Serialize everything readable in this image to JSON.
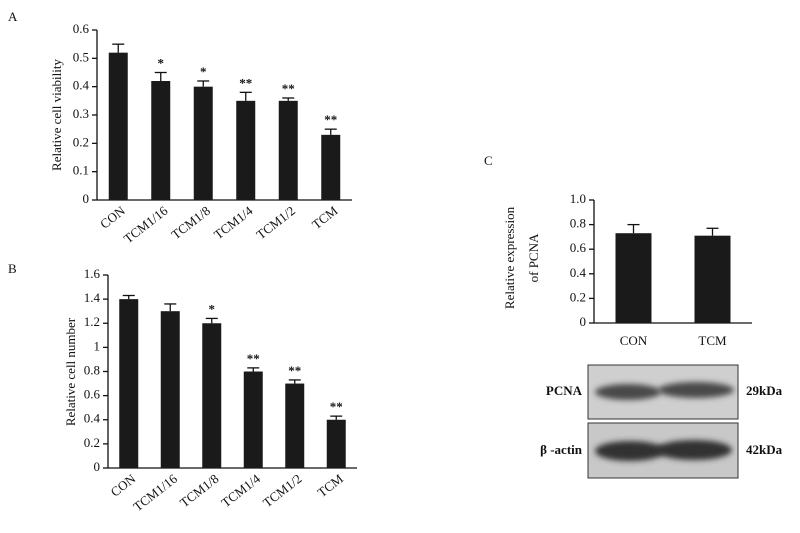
{
  "chart_data": [
    {
      "type": "bar",
      "panel": "A",
      "ylabel": [
        "Relative cell viability"
      ],
      "categories": [
        "CON",
        "TCM1/16",
        "TCM1/8",
        "TCM1/4",
        "TCM1/2",
        "TCM"
      ],
      "values": [
        0.52,
        0.42,
        0.4,
        0.35,
        0.35,
        0.23
      ],
      "errors": [
        0.03,
        0.03,
        0.02,
        0.03,
        0.01,
        0.02
      ],
      "annotations": [
        null,
        "*",
        "*",
        "**",
        "**",
        "**"
      ],
      "color": "#1a1a1a",
      "ylim": [
        0,
        0.6
      ],
      "yticks": [
        0,
        0.1,
        0.2,
        0.3,
        0.4,
        0.5,
        0.6
      ]
    },
    {
      "type": "bar",
      "panel": "B",
      "ylabel": [
        "Relative cell number"
      ],
      "categories": [
        "CON",
        "TCM1/16",
        "TCM1/8",
        "TCM1/4",
        "TCM1/2",
        "TCM"
      ],
      "values": [
        1.4,
        1.3,
        1.2,
        0.8,
        0.7,
        0.4
      ],
      "errors": [
        0.03,
        0.06,
        0.04,
        0.03,
        0.03,
        0.03
      ],
      "annotations": [
        null,
        null,
        "*",
        "**",
        "**",
        "**"
      ],
      "color": "#1a1a1a",
      "ylim": [
        0,
        1.6
      ],
      "yticks": [
        0,
        0.2,
        0.4,
        0.6,
        0.8,
        1.0,
        1.2,
        1.4,
        1.6
      ]
    },
    {
      "type": "bar",
      "panel": "C",
      "ylabel": [
        "Relative expression",
        "of PCNA"
      ],
      "categories": [
        "CON",
        "TCM"
      ],
      "values": [
        0.73,
        0.71
      ],
      "errors": [
        0.07,
        0.06
      ],
      "color": "#1a1a1a",
      "ylim": [
        0,
        1.0
      ],
      "yticks": [
        0,
        0.2,
        0.4,
        0.6,
        0.8,
        {
          "value": 1.0,
          "label": "1.0"
        }
      ],
      "blot": [
        {
          "label": "PCNA",
          "size": "29kDa"
        },
        {
          "label": "β -actin",
          "size": "42kDa"
        }
      ]
    }
  ]
}
